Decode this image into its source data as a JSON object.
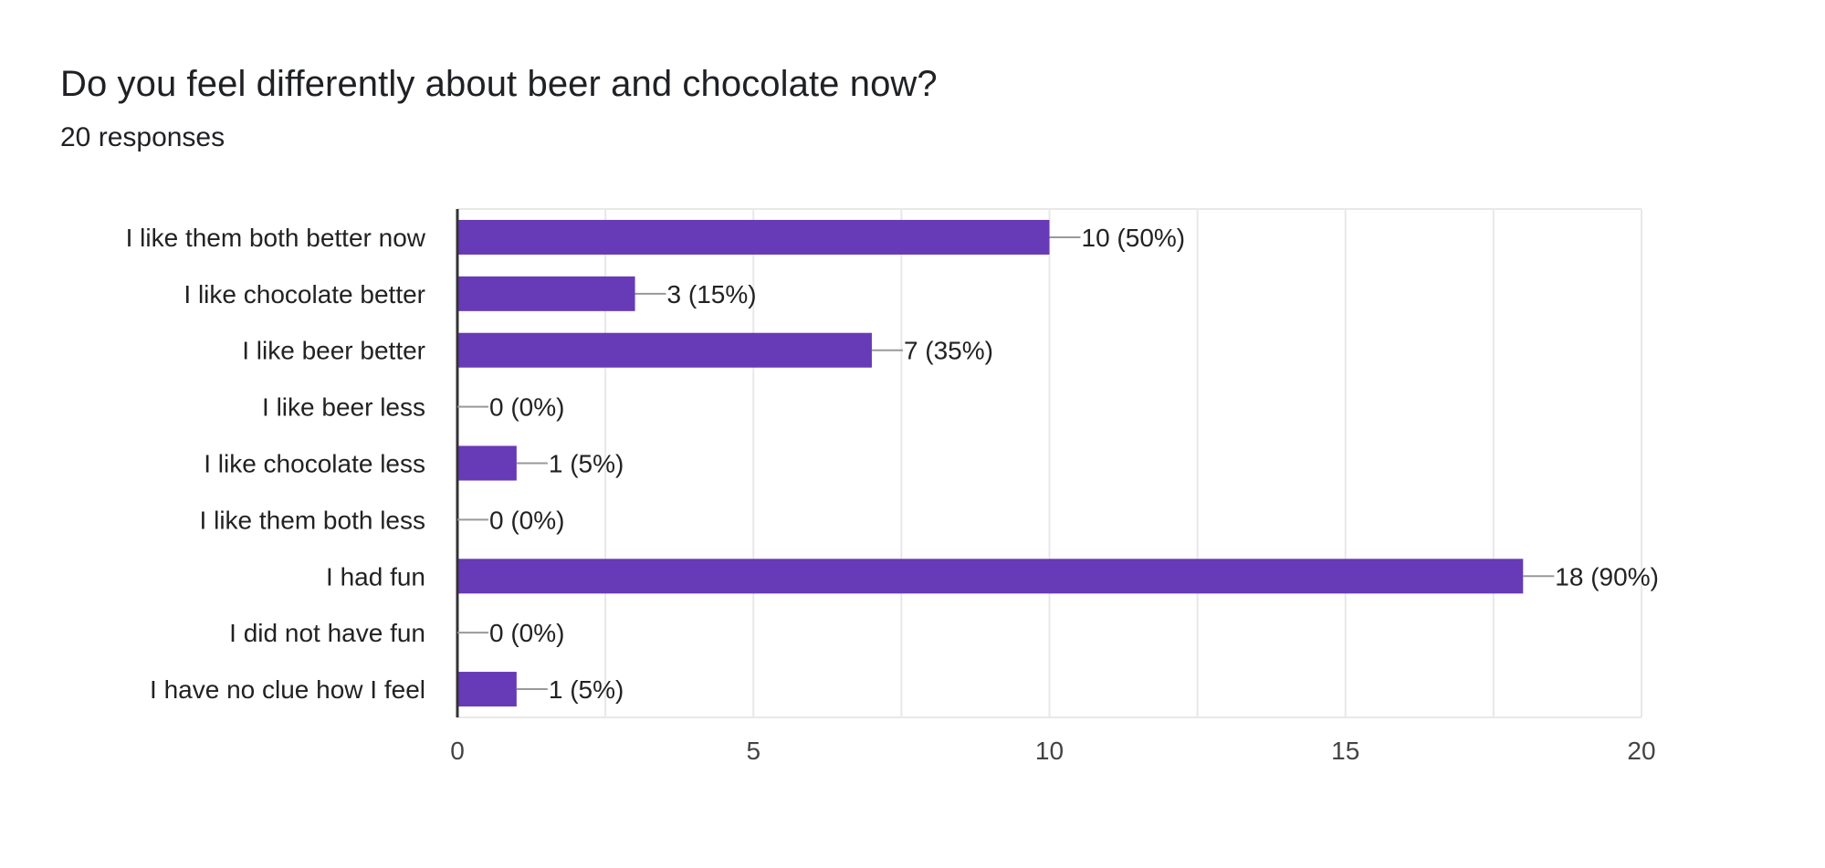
{
  "header": {
    "title": "Do you feel differently about beer and chocolate now?",
    "responses": "20 responses"
  },
  "chart_data": {
    "type": "bar",
    "orientation": "horizontal",
    "title": "Do you feel differently about beer and chocolate now?",
    "subtitle": "20 responses",
    "categories": [
      "I like them both better now",
      "I like chocolate better",
      "I like beer better",
      "I like beer less",
      "I like chocolate less",
      "I like them both less",
      "I had fun",
      "I did not have fun",
      "I have no clue how I feel"
    ],
    "values": [
      10,
      3,
      7,
      0,
      1,
      0,
      18,
      0,
      1
    ],
    "data_labels": [
      "10 (50%)",
      "3 (15%)",
      "7 (35%)",
      "0 (0%)",
      "1 (5%)",
      "0 (0%)",
      "18 (90%)",
      "0 (0%)",
      "1 (5%)"
    ],
    "xlim": [
      0,
      20
    ],
    "major_ticks": [
      0,
      5,
      10,
      15,
      20
    ],
    "minor_gridlines": [
      2.5,
      7.5,
      12.5,
      17.5
    ],
    "tick_labels": [
      "0",
      "5",
      "10",
      "15",
      "20"
    ],
    "grid": true,
    "xlabel": "",
    "ylabel": "",
    "colors": {
      "bar": "#673AB7",
      "gridline": "#E8E8E8",
      "axis": "#333333",
      "leader": "#999999"
    }
  }
}
